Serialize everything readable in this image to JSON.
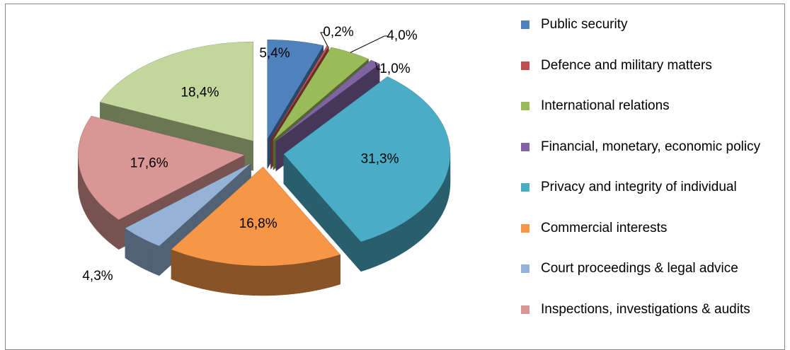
{
  "chart_data": {
    "type": "pie",
    "categories": [
      "Public security",
      "Defence and military matters",
      "International relations",
      "Financial, monetary, economic policy",
      "Privacy and integrity of individual",
      "Commercial interests",
      "Court proceedings & legal advice",
      "Inspections, investigations & audits",
      null
    ],
    "values": [
      5.4,
      0.2,
      4.0,
      1.0,
      31.3,
      16.8,
      4.3,
      17.6,
      18.4
    ],
    "value_labels": [
      "5,4%",
      "0,2%",
      "4,0%",
      "1,0%",
      "31,3%",
      "16,8%",
      "4,3%",
      "17,6%",
      "18,4%"
    ],
    "colors": [
      "#4f81bd",
      "#c0504d",
      "#9bbb59",
      "#8064a2",
      "#4bacc6",
      "#f79646",
      "#95b3d7",
      "#d99694",
      "#c3d69b"
    ],
    "legend": "right"
  }
}
